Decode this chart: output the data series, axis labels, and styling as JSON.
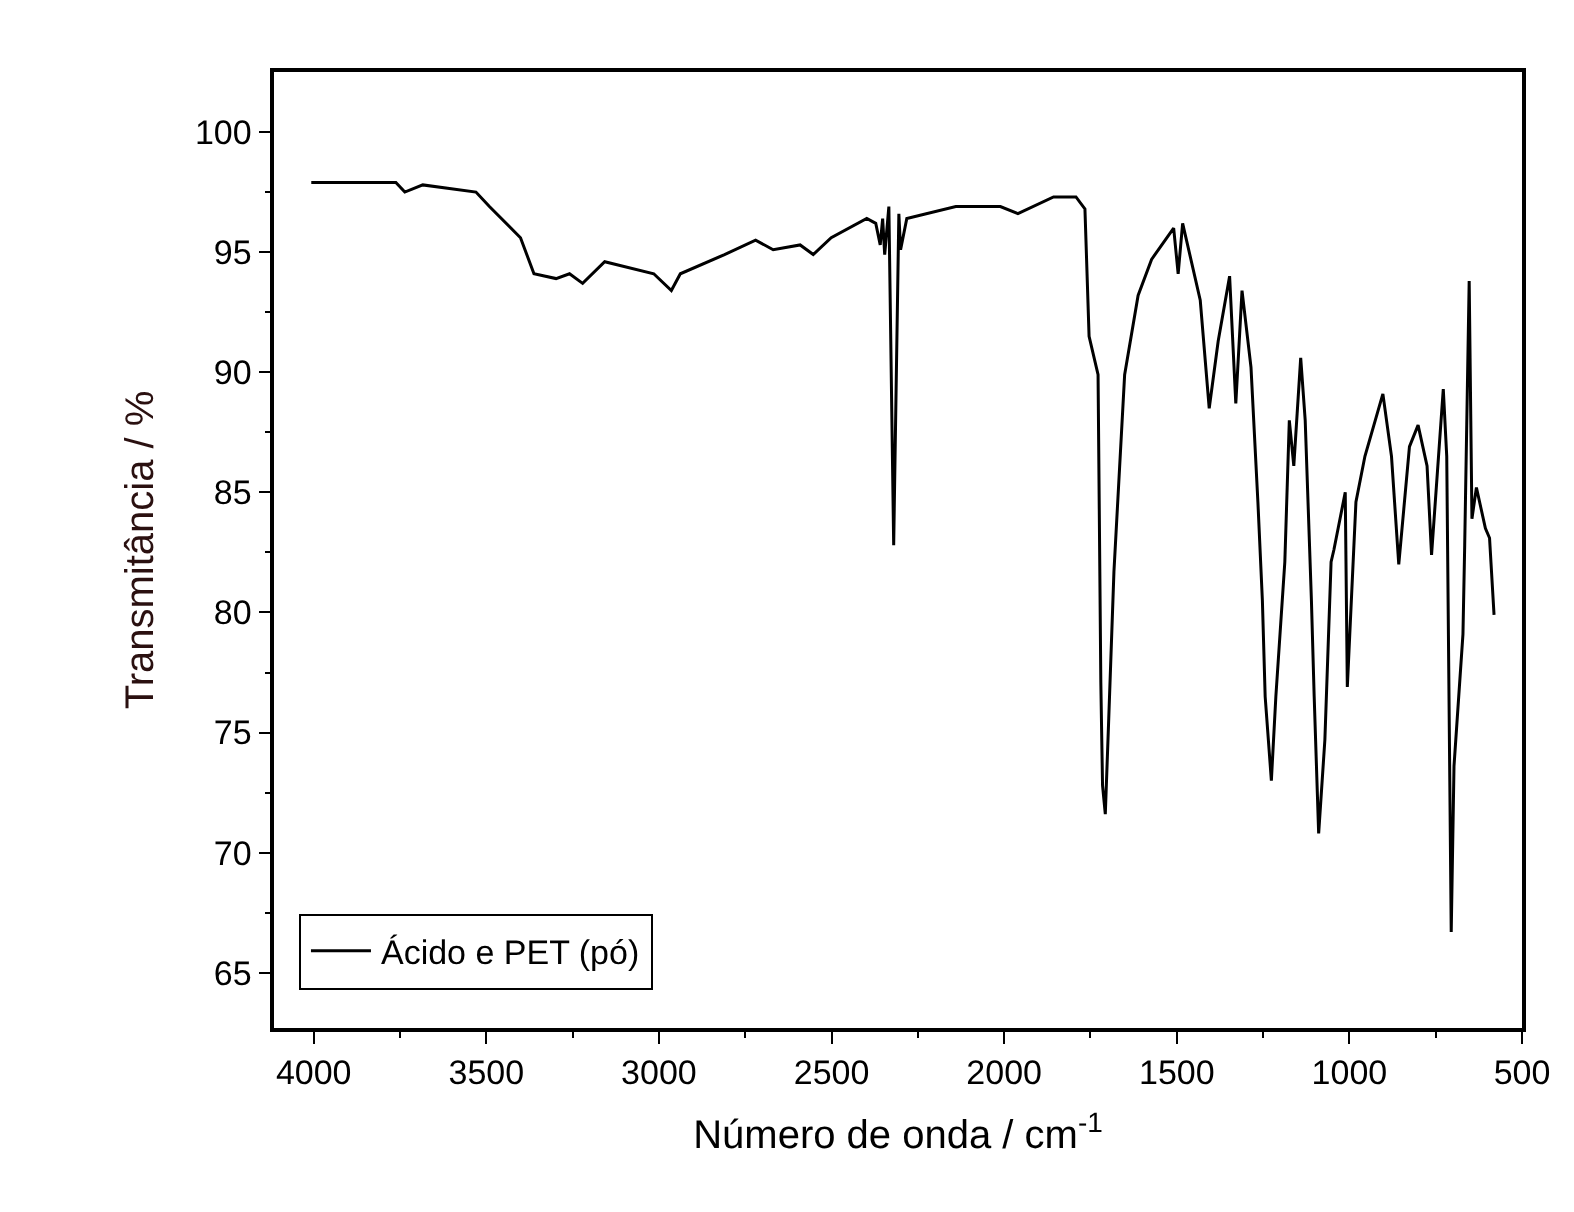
{
  "chart_data": {
    "type": "line",
    "xlabel": "Número de onda / cm$^{-1}$",
    "ylabel": "Transmitância / %",
    "xlim": [
      4115,
      500
    ],
    "ylim": [
      62.7,
      102.5
    ],
    "xticks": [
      4000,
      3500,
      3000,
      2500,
      2000,
      1500,
      1000,
      500
    ],
    "yticks": [
      65,
      70,
      75,
      80,
      85,
      90,
      95,
      100
    ],
    "legend": "bottom left",
    "marker": "none",
    "line_style": "solid",
    "series": [
      {
        "name": "Ácido e PET (pó)",
        "color": "#000000",
        "x": [
          4007,
          3762,
          3736,
          3684,
          3530,
          3491,
          3401,
          3362,
          3298,
          3259,
          3221,
          3157,
          3015,
          2964,
          2938,
          2810,
          2720,
          2669,
          2591,
          2553,
          2501,
          2398,
          2372,
          2359,
          2352,
          2346,
          2334,
          2320,
          2305,
          2300,
          2282,
          2140,
          2011,
          1960,
          1857,
          1792,
          1766,
          1754,
          1728,
          1720,
          1715,
          1707,
          1697,
          1682,
          1651,
          1612,
          1573,
          1509,
          1496,
          1483,
          1432,
          1406,
          1380,
          1347,
          1329,
          1311,
          1285,
          1265,
          1252,
          1244,
          1226,
          1213,
          1187,
          1174,
          1161,
          1141,
          1128,
          1110,
          1102,
          1089,
          1071,
          1053,
          1045,
          1012,
          1006,
          981,
          955,
          903,
          878,
          857,
          826,
          801,
          775,
          762,
          728,
          718,
          705,
          697,
          671,
          666,
          653,
          645,
          632,
          606,
          594,
          581
        ],
        "values": [
          97.9,
          97.9,
          97.5,
          97.8,
          97.5,
          96.9,
          95.6,
          94.1,
          93.9,
          94.1,
          93.7,
          94.6,
          94.1,
          93.4,
          94.1,
          94.9,
          95.5,
          95.1,
          95.3,
          94.9,
          95.6,
          96.4,
          96.2,
          95.3,
          96.4,
          94.9,
          96.9,
          82.8,
          96.6,
          95.1,
          96.4,
          96.9,
          96.9,
          96.6,
          97.3,
          97.3,
          96.8,
          91.5,
          89.9,
          77.1,
          72.8,
          71.6,
          75.6,
          81.7,
          89.9,
          93.2,
          94.7,
          96.0,
          94.1,
          96.2,
          93.0,
          88.5,
          91.3,
          94.0,
          88.7,
          93.4,
          90.2,
          84.6,
          80.5,
          76.5,
          73.0,
          76.5,
          82.1,
          88.0,
          86.1,
          90.6,
          88.0,
          80.5,
          76.5,
          70.8,
          74.7,
          82.1,
          82.6,
          85.0,
          76.9,
          84.6,
          86.5,
          89.1,
          86.5,
          82.0,
          86.9,
          87.8,
          86.1,
          82.4,
          89.3,
          86.5,
          66.7,
          73.6,
          79.1,
          82.8,
          93.8,
          83.9,
          85.2,
          83.5,
          83.1,
          79.9
        ]
      }
    ]
  }
}
